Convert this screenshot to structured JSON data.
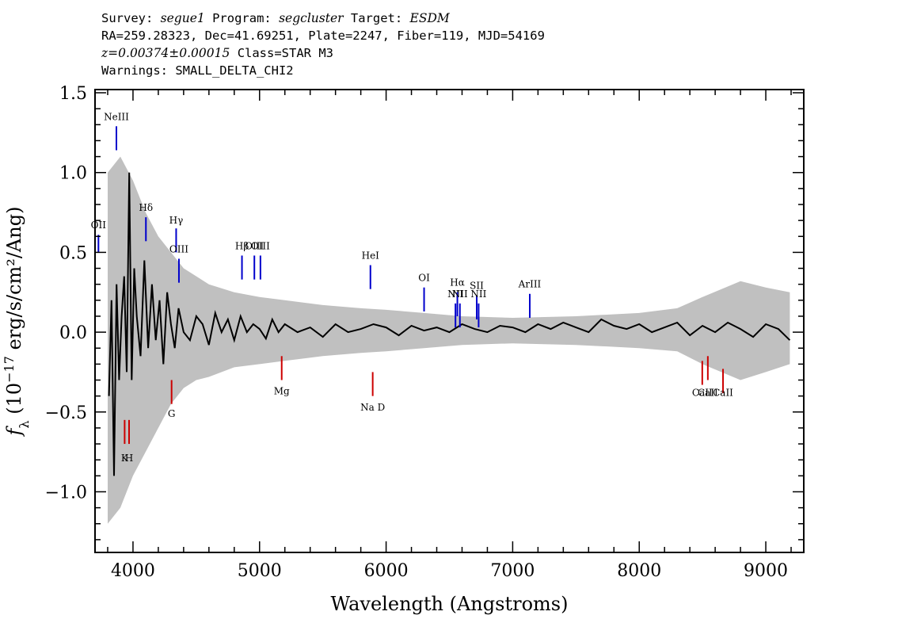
{
  "header": {
    "line1": {
      "survey_label": "Survey:",
      "survey": "segue1",
      "program_label": "Program:",
      "program": "segcluster",
      "target_label": "Target:",
      "target": "ESDM"
    },
    "line2": "RA=259.28323, Dec=41.69251, Plate=2247, Fiber=119, MJD=54169",
    "line3": {
      "z": "z=0.00374±0.00015",
      "class": "Class=STAR M3"
    },
    "line4": "Warnings: SMALL_DELTA_CHI2"
  },
  "colors": {
    "flux": "#000000",
    "error": "#c0c0c0",
    "emission_line": "#0000cc",
    "absorption_line": "#cc0000"
  },
  "chart_data": {
    "type": "line",
    "title": "",
    "xlabel": "Wavelength (Angstroms)",
    "ylabel": "f_λ (10^-17 erg/s/cm²/Ang)",
    "xlim": [
      3700,
      9300
    ],
    "ylim": [
      -1.38,
      1.52
    ],
    "xticks": [
      4000,
      5000,
      6000,
      7000,
      8000,
      9000
    ],
    "yticks": [
      -1.0,
      -0.5,
      0.0,
      0.5,
      1.0,
      1.5
    ],
    "ytick_labels": [
      "−1.0",
      "−0.5",
      "0.0",
      "0.5",
      "1.0",
      "1.5"
    ],
    "grid": false,
    "series": [
      {
        "x": [
          3810,
          3830,
          3850,
          3870,
          3890,
          3910,
          3930,
          3950,
          3970,
          3990,
          4010,
          4030,
          4060,
          4090,
          4120,
          4150,
          4180,
          4210,
          4240,
          4270,
          4300,
          4330,
          4360,
          4400,
          4450,
          4500,
          4550,
          4600,
          4650,
          4700,
          4750,
          4800,
          4850,
          4900,
          4950,
          5000,
          5050,
          5100,
          5150,
          5200,
          5300,
          5400,
          5500,
          5600,
          5700,
          5800,
          5900,
          6000,
          6100,
          6200,
          6300,
          6400,
          6500,
          6600,
          6700,
          6800,
          6900,
          7000,
          7100,
          7200,
          7300,
          7400,
          7500,
          7600,
          7700,
          7800,
          7900,
          8000,
          8100,
          8200,
          8300,
          8400,
          8500,
          8600,
          8700,
          8800,
          8900,
          9000,
          9100,
          9190
        ],
        "y": [
          -0.4,
          0.2,
          -0.9,
          0.3,
          -0.3,
          0.1,
          0.35,
          -0.25,
          1.0,
          -0.3,
          0.4,
          0.1,
          -0.15,
          0.45,
          -0.1,
          0.3,
          -0.05,
          0.2,
          -0.2,
          0.25,
          0.05,
          -0.1,
          0.15,
          0.0,
          -0.05,
          0.1,
          0.05,
          -0.08,
          0.12,
          0.0,
          0.08,
          -0.05,
          0.1,
          0.0,
          0.05,
          0.02,
          -0.04,
          0.08,
          0.0,
          0.05,
          0.0,
          0.03,
          -0.03,
          0.05,
          0.0,
          0.02,
          0.05,
          0.03,
          -0.02,
          0.04,
          0.01,
          0.03,
          0.0,
          0.05,
          0.02,
          0.0,
          0.04,
          0.03,
          0.0,
          0.05,
          0.02,
          0.06,
          0.03,
          0.0,
          0.08,
          0.04,
          0.02,
          0.05,
          0.0,
          0.03,
          0.06,
          -0.02,
          0.04,
          0.0,
          0.06,
          0.02,
          -0.03,
          0.05,
          0.02,
          -0.05
        ]
      }
    ],
    "error_band": {
      "x": [
        3800,
        3900,
        4000,
        4100,
        4200,
        4300,
        4400,
        4500,
        4600,
        4800,
        5000,
        5200,
        5500,
        5800,
        6000,
        6300,
        6600,
        7000,
        7500,
        8000,
        8300,
        8500,
        8800,
        9000,
        9190
      ],
      "lower": [
        -1.2,
        -1.1,
        -0.9,
        -0.75,
        -0.6,
        -0.45,
        -0.35,
        -0.3,
        -0.28,
        -0.22,
        -0.2,
        -0.18,
        -0.15,
        -0.13,
        -0.12,
        -0.1,
        -0.08,
        -0.07,
        -0.08,
        -0.1,
        -0.12,
        -0.2,
        -0.3,
        -0.25,
        -0.2
      ],
      "upper": [
        1.0,
        1.1,
        0.95,
        0.75,
        0.6,
        0.5,
        0.4,
        0.35,
        0.3,
        0.25,
        0.22,
        0.2,
        0.17,
        0.15,
        0.14,
        0.12,
        0.1,
        0.09,
        0.1,
        0.12,
        0.15,
        0.22,
        0.32,
        0.28,
        0.25
      ]
    },
    "line_labels": [
      {
        "name": "NeIII",
        "x": 3869,
        "kind": "emission",
        "label_y": 1.33,
        "tick_top": 1.29,
        "tick_bottom": 1.14
      },
      {
        "name": "OII",
        "x": 3727,
        "kind": "emission",
        "label_y": 0.65,
        "tick_top": 0.61,
        "tick_bottom": 0.5
      },
      {
        "name": "Hδ",
        "x": 4102,
        "kind": "emission",
        "label_y": 0.76,
        "tick_top": 0.72,
        "tick_bottom": 0.57
      },
      {
        "name": "Hγ",
        "x": 4341,
        "kind": "emission",
        "label_y": 0.68,
        "tick_top": 0.65,
        "tick_bottom": 0.5
      },
      {
        "name": "OIII",
        "x": 4363,
        "kind": "emission",
        "label_y": 0.5,
        "tick_top": 0.46,
        "tick_bottom": 0.31
      },
      {
        "name": "Hβ",
        "x": 4861,
        "kind": "emission",
        "label_y": 0.52,
        "tick_top": 0.48,
        "tick_bottom": 0.33
      },
      {
        "name": "OIII",
        "x": 4959,
        "kind": "emission",
        "label_y": 0.52,
        "tick_top": 0.48,
        "tick_bottom": 0.33
      },
      {
        "name": "OIII",
        "x": 5007,
        "kind": "emission",
        "label_y": 0.52,
        "tick_top": 0.48,
        "tick_bottom": 0.33
      },
      {
        "name": "HeI",
        "x": 5876,
        "kind": "emission",
        "label_y": 0.46,
        "tick_top": 0.42,
        "tick_bottom": 0.27
      },
      {
        "name": "OI",
        "x": 6300,
        "kind": "emission",
        "label_y": 0.32,
        "tick_top": 0.28,
        "tick_bottom": 0.13
      },
      {
        "name": "NII",
        "x": 6548,
        "kind": "emission",
        "label_y": 0.22,
        "tick_top": 0.18,
        "tick_bottom": 0.03
      },
      {
        "name": "Hα",
        "x": 6563,
        "kind": "emission",
        "label_y": 0.29,
        "tick_top": 0.25,
        "tick_bottom": 0.1
      },
      {
        "name": "NII",
        "x": 6583,
        "kind": "emission",
        "label_y": 0.22,
        "tick_top": 0.18,
        "tick_bottom": 0.03
      },
      {
        "name": "SII",
        "x": 6716,
        "kind": "emission",
        "label_y": 0.27,
        "tick_top": 0.23,
        "tick_bottom": 0.08
      },
      {
        "name": "NII",
        "x": 6731,
        "kind": "emission",
        "label_y": 0.22,
        "tick_top": 0.18,
        "tick_bottom": 0.03
      },
      {
        "name": "ArIII",
        "x": 7135,
        "kind": "emission",
        "label_y": 0.28,
        "tick_top": 0.24,
        "tick_bottom": 0.09
      },
      {
        "name": "K",
        "x": 3934,
        "kind": "absorption",
        "label_y": -0.81,
        "tick_top": -0.55,
        "tick_bottom": -0.7
      },
      {
        "name": "H",
        "x": 3969,
        "kind": "absorption",
        "label_y": -0.81,
        "tick_top": -0.55,
        "tick_bottom": -0.7
      },
      {
        "name": "G",
        "x": 4305,
        "kind": "absorption",
        "label_y": -0.53,
        "tick_top": -0.3,
        "tick_bottom": -0.45
      },
      {
        "name": "Mg",
        "x": 5175,
        "kind": "absorption",
        "label_y": -0.39,
        "tick_top": -0.15,
        "tick_bottom": -0.3
      },
      {
        "name": "Na D",
        "x": 5894,
        "kind": "absorption",
        "label_y": -0.49,
        "tick_top": -0.25,
        "tick_bottom": -0.4
      },
      {
        "name": "CaII",
        "x": 8498,
        "kind": "absorption",
        "label_y": -0.4,
        "tick_top": -0.18,
        "tick_bottom": -0.33
      },
      {
        "name": "CaII",
        "x": 8542,
        "kind": "absorption",
        "label_y": -0.4,
        "tick_top": -0.15,
        "tick_bottom": -0.3
      },
      {
        "name": "CaII",
        "x": 8662,
        "kind": "absorption",
        "label_y": -0.4,
        "tick_top": -0.23,
        "tick_bottom": -0.38
      }
    ]
  }
}
